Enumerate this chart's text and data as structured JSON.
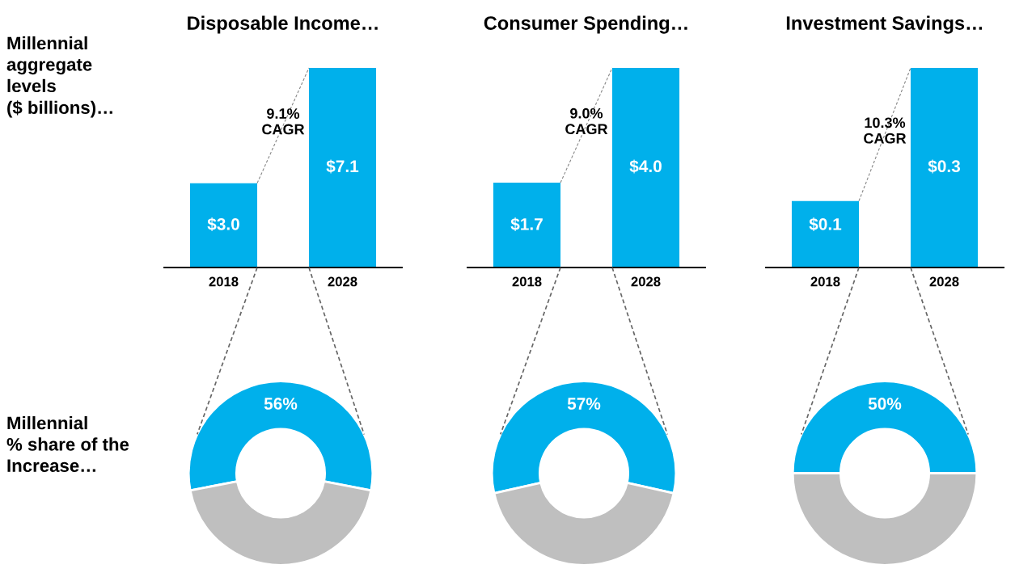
{
  "chart_data": [
    {
      "type": "bar",
      "title": "Disposable Income…",
      "categories": [
        "2018",
        "2028"
      ],
      "values": [
        3.0,
        7.1
      ],
      "value_labels": [
        "$3.0",
        "$7.1"
      ],
      "color": "#00b0eb",
      "annotations": [
        "9.1%\nCAGR",
        "Millennial\naggregate\nlevels\n($ billions)…"
      ]
    },
    {
      "type": "bar",
      "title": "Consumer Spending…",
      "categories": [
        "2018",
        "2028"
      ],
      "values": [
        1.7,
        4.0
      ],
      "value_labels": [
        "$1.7",
        "$4.0"
      ],
      "color": "#00b0eb",
      "annotations": [
        "9.0%\nCAGR"
      ]
    },
    {
      "type": "bar",
      "title": "Investment Savings…",
      "categories": [
        "2018",
        "2028"
      ],
      "values": [
        0.1,
        0.3
      ],
      "value_labels": [
        "$0.1",
        "$0.3"
      ],
      "color": "#00b0eb",
      "annotations": [
        "10.3%\nCAGR"
      ]
    },
    {
      "type": "donut",
      "categories": [
        null,
        null
      ],
      "values": [
        56,
        44
      ],
      "colors": [
        "#00b0eb",
        "#bfbfbf"
      ],
      "value_labels": [
        "56%",
        null
      ],
      "annotations": [
        "Millennial\n% share of the\nIncrease…"
      ]
    },
    {
      "type": "donut",
      "categories": [
        null,
        null
      ],
      "values": [
        57,
        43
      ],
      "colors": [
        "#00b0eb",
        "#bfbfbf"
      ],
      "value_labels": [
        "57%",
        null
      ]
    },
    {
      "type": "donut",
      "categories": [
        null,
        null
      ],
      "values": [
        50,
        50
      ],
      "colors": [
        "#00b0eb",
        "#bfbfbf"
      ],
      "value_labels": [
        "50%",
        null
      ]
    }
  ]
}
